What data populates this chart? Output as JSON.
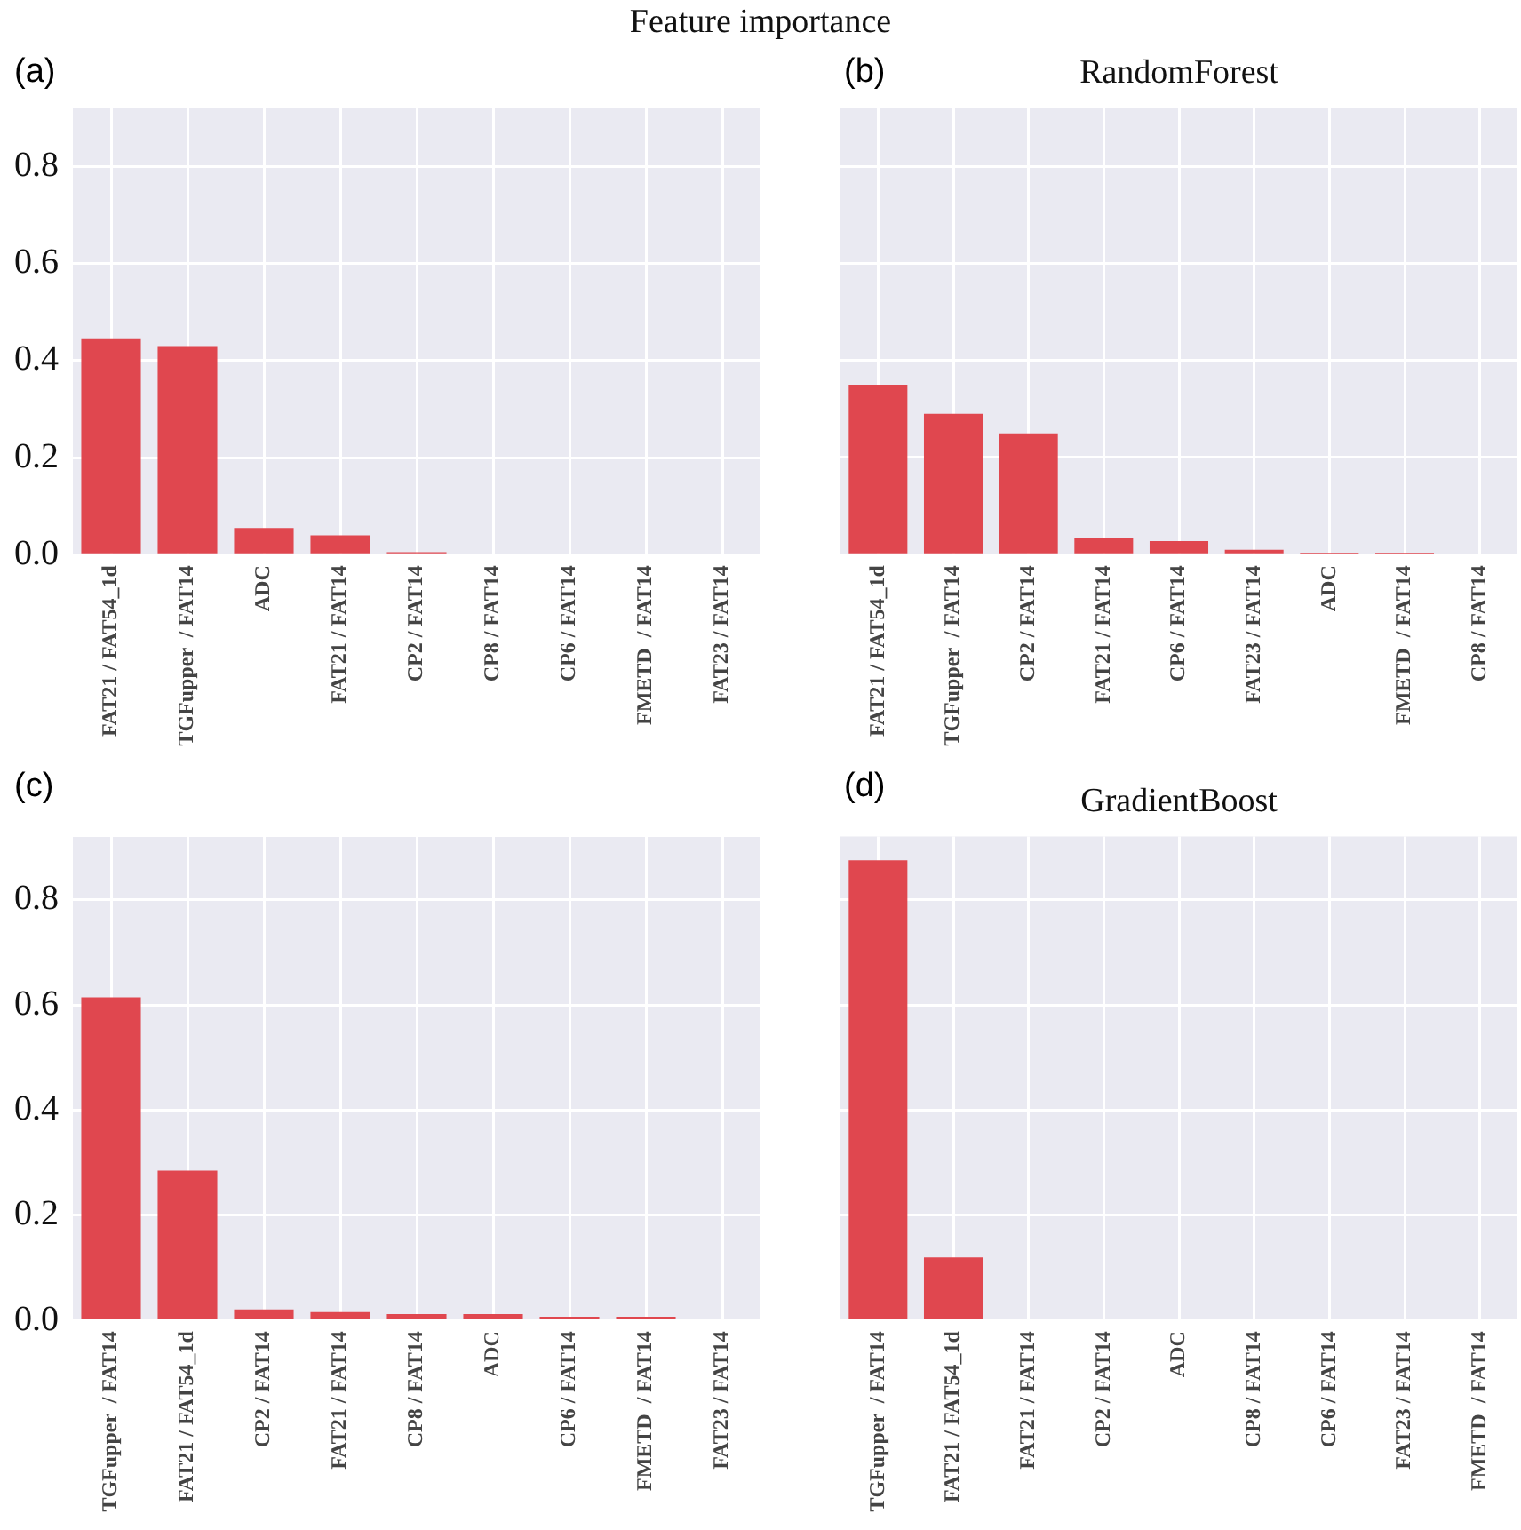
{
  "chart_data": [
    {
      "type": "bar",
      "annotations": [
        "Feature importance",
        "(a)"
      ],
      "categories": [
        "FAT21 / FAT54_1d",
        "TGFupper  / FAT14",
        "ADC",
        "FAT21 / FAT14",
        "CP2 / FAT14",
        "CP8 / FAT14",
        "CP6 / FAT14",
        "FMETD  / FAT14",
        "FAT23 / FAT14"
      ],
      "values": [
        0.446,
        0.43,
        0.055,
        0.04,
        0.005,
        0,
        0,
        0,
        0
      ],
      "color": "#e0474f",
      "ylim": [
        0,
        0.92
      ],
      "yticks": [
        {
          "value": 0,
          "label": "0.0"
        },
        0.2,
        0.4,
        0.6,
        0.8
      ],
      "grid": true
    },
    {
      "type": "bar",
      "title": "RandomForest",
      "annotations": [
        "(b)"
      ],
      "categories": [
        "FAT21 / FAT54_1d",
        "TGFupper  / FAT14",
        "CP2 / FAT14",
        "FAT21 / FAT14",
        "CP6 / FAT14",
        "FAT23 / FAT14",
        "ADC",
        "FMETD  / FAT14",
        "CP8 / FAT14"
      ],
      "values": [
        0.35,
        0.29,
        0.25,
        0.035,
        0.028,
        0.01,
        0.004,
        0.004,
        0
      ],
      "color": "#e0474f",
      "ylim": [
        0,
        0.92
      ],
      "yticks": [
        0,
        0.2,
        0.4,
        0.6,
        0.8
      ],
      "grid": true,
      "tick_labels": "x"
    },
    {
      "type": "bar",
      "annotations": [
        "(c)"
      ],
      "categories": [
        "TGFupper  / FAT14",
        "FAT21 / FAT54_1d",
        "CP2 / FAT14",
        "FAT21 / FAT14",
        "CP8 / FAT14",
        "ADC",
        "CP6 / FAT14",
        "FMETD  / FAT14",
        "FAT23 / FAT14"
      ],
      "values": [
        0.615,
        0.285,
        0.021,
        0.016,
        0.012,
        0.012,
        0.007,
        0.007,
        0
      ],
      "color": "#e0474f",
      "ylim": [
        0,
        0.92
      ],
      "yticks": [
        {
          "value": 0,
          "label": "0.0"
        },
        0.2,
        0.4,
        0.6,
        0.8
      ],
      "grid": true
    },
    {
      "type": "bar",
      "title": "GradientBoost",
      "annotations": [
        "(d)"
      ],
      "categories": [
        "TGFupper  / FAT14",
        "FAT21 / FAT54_1d",
        "FAT21 / FAT14",
        "CP2 / FAT14",
        "ADC",
        "CP8 / FAT14",
        "CP6 / FAT14",
        "FAT23 / FAT14",
        "FMETD  / FAT14"
      ],
      "values": [
        0.875,
        0.12,
        0,
        0,
        0,
        0,
        0,
        0,
        0
      ],
      "color": "#e0474f",
      "ylim": [
        0,
        0.92
      ],
      "yticks": [
        0,
        0.2,
        0.4,
        0.6,
        0.8
      ],
      "grid": true,
      "tick_labels": "x"
    }
  ]
}
